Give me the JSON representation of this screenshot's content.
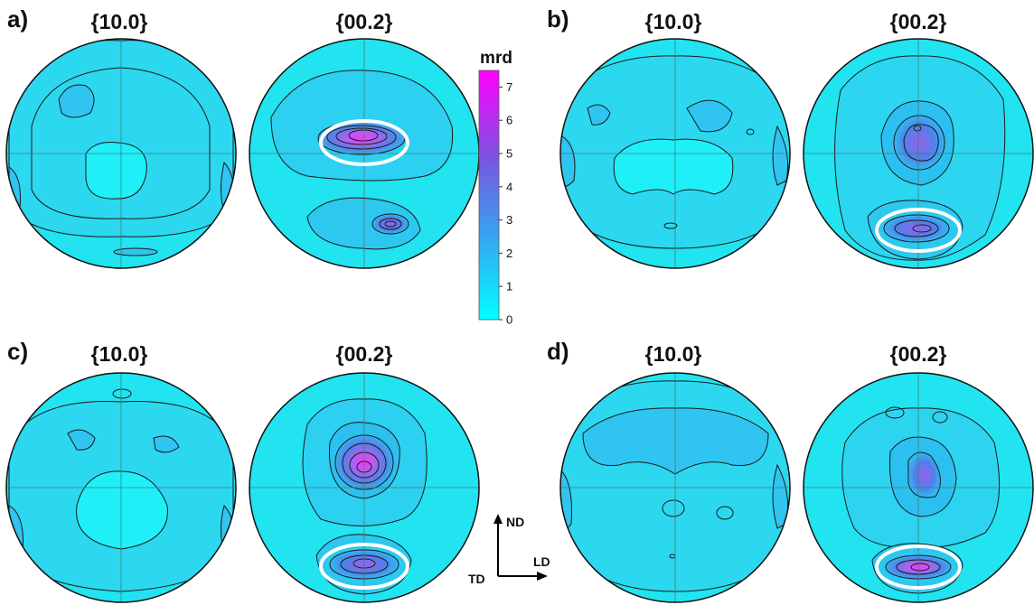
{
  "panels": [
    {
      "letter": "a)",
      "titles": [
        "{10.0}",
        "{00.2}"
      ]
    },
    {
      "letter": "b)",
      "titles": [
        "{10.0}",
        "{00.2}"
      ]
    },
    {
      "letter": "c)",
      "titles": [
        "{10.0}",
        "{00.2}"
      ]
    },
    {
      "letter": "d)",
      "titles": [
        "{10.0}",
        "{00.2}"
      ]
    }
  ],
  "colorbar": {
    "title": "mrd",
    "ticks": [
      "0",
      "1",
      "2",
      "3",
      "4",
      "5",
      "6",
      "7"
    ],
    "min": 0,
    "max": 7.5,
    "colors": [
      "#00ffff",
      "#3aa0ee",
      "#7a55e0",
      "#ff00ff"
    ]
  },
  "axes": {
    "up": "ND",
    "right": "LD",
    "left": "TD"
  },
  "colors": {
    "background_fill": "#22e3f0",
    "contour_line": "#1a1a1a",
    "crosshair": "#4a7a7a",
    "highlight_ellipse": "#ffffff"
  }
}
